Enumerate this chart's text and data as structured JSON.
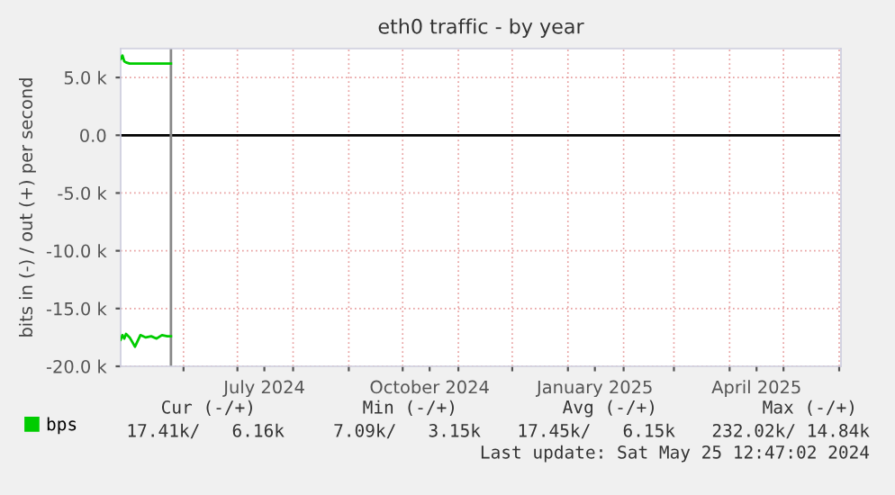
{
  "chart_data": {
    "type": "line",
    "title": "eth0 traffic - by year",
    "ylabel": "bits in (-) / out (+) per second",
    "x": [
      "2024-04-27",
      "2024-04-28",
      "2024-04-29",
      "2024-04-30",
      "2024-05-02",
      "2024-05-05",
      "2024-05-08",
      "2024-05-11",
      "2024-05-14",
      "2024-05-17",
      "2024-05-20",
      "2024-05-23",
      "2024-05-25"
    ],
    "series": [
      {
        "name": "bps",
        "color": "#00cc00",
        "values": [
          6600,
          6900,
          6400,
          6300,
          6200,
          6200,
          6200,
          6200,
          6200,
          6200,
          6200,
          6200,
          6200
        ]
      },
      {
        "color": "#00cc00",
        "values": [
          -17700,
          -17300,
          -17600,
          -17200,
          -17500,
          -18300,
          -17300,
          -17500,
          -17400,
          -17600,
          -17300,
          -17400,
          -17400
        ]
      }
    ],
    "xlim": [
      "2024-04-27",
      "2025-06-02"
    ],
    "xticks": [
      {
        "value": "2024-06-01",
        "label": null
      },
      {
        "value": "2024-07-01",
        "label": null
      },
      {
        "value": "2024-07-16",
        "label": "July 2024"
      },
      {
        "value": "2024-08-01",
        "label": null
      },
      {
        "value": "2024-09-01",
        "label": null
      },
      {
        "value": "2024-10-01",
        "label": null
      },
      {
        "value": "2024-10-16",
        "label": "October 2024"
      },
      {
        "value": "2024-11-01",
        "label": null
      },
      {
        "value": "2024-12-01",
        "label": null
      },
      {
        "value": "2025-01-01",
        "label": null
      },
      {
        "value": "2025-01-16",
        "label": "January 2025"
      },
      {
        "value": "2025-02-01",
        "label": null
      },
      {
        "value": "2025-03-01",
        "label": null
      },
      {
        "value": "2025-04-01",
        "label": null
      },
      {
        "value": "2025-04-16",
        "label": "April 2025"
      },
      {
        "value": "2025-05-01",
        "label": null
      },
      {
        "value": "2025-06-01",
        "label": null
      }
    ],
    "ylim": [
      -20000,
      7500
    ],
    "yticks": [
      {
        "value": -20000,
        "label": "-20.0 k"
      },
      {
        "value": -15000,
        "label": "-15.0 k"
      },
      {
        "value": -10000,
        "label": "-10.0 k"
      },
      {
        "value": -5000,
        "label": "-5.0 k"
      },
      {
        "value": 0,
        "label": "0.0"
      },
      {
        "value": 5000,
        "label": "5.0 k"
      }
    ],
    "ref_lines": [
      {
        "axis": "y",
        "value": 0,
        "color": "#000000"
      },
      {
        "axis": "x",
        "value": "2024-05-25",
        "color": "#888888"
      }
    ],
    "grid": true,
    "legend": "bottom left",
    "marker": "none",
    "line_style": "solid",
    "annotations": [
      "Cur (-/+)",
      "Min (-/+)",
      "Avg (-/+)",
      "Max (-/+)",
      "17.41k/   6.16k",
      "7.09k/   3.15k",
      "17.45k/   6.15k",
      "232.02k/ 14.84k",
      "Last update: Sat May 25 12:47:02 2024"
    ]
  }
}
